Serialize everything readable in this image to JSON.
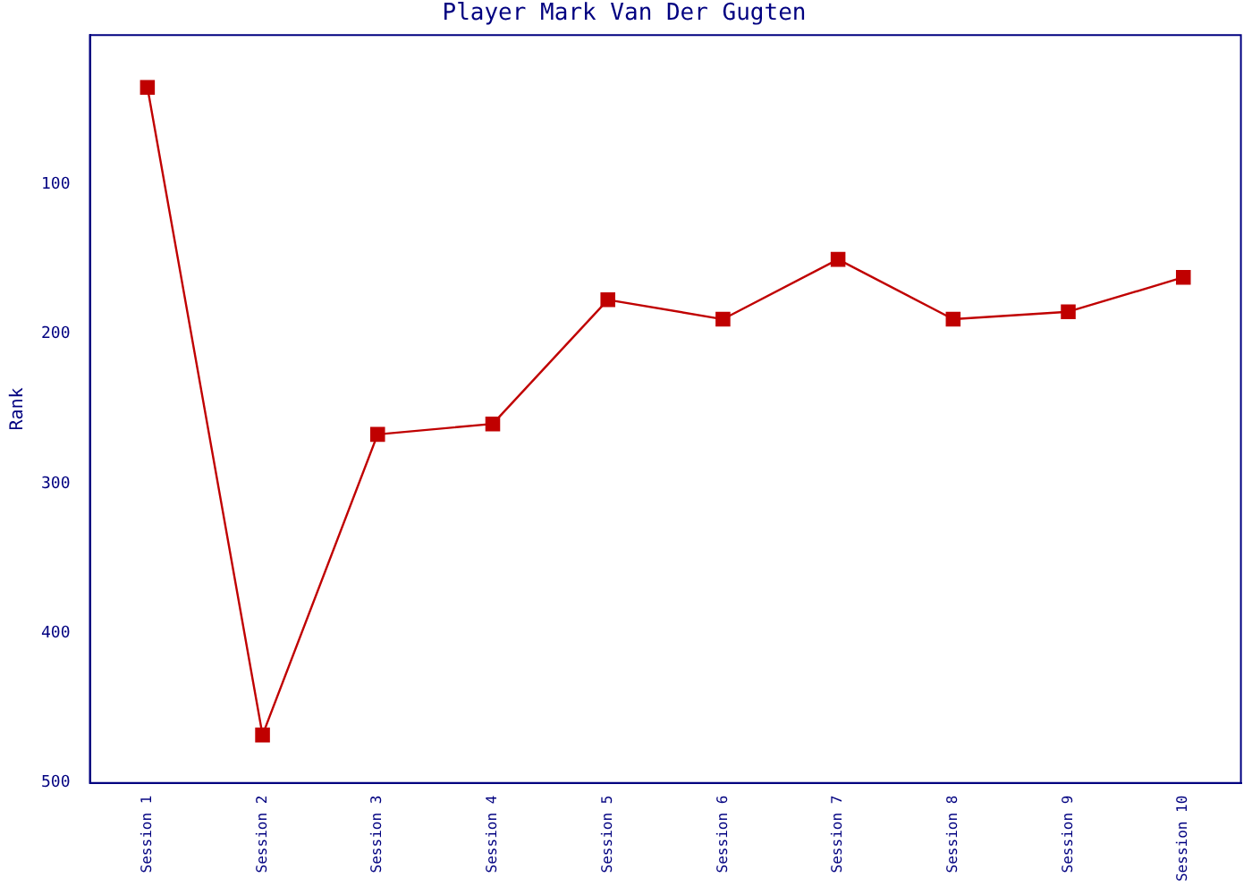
{
  "chart_data": {
    "type": "line",
    "title": "Player Mark Van Der Gugten",
    "ylabel": "Rank",
    "categories": [
      "Session 1",
      "Session 2",
      "Session 3",
      "Session 4",
      "Session 5",
      "Session 6",
      "Session 7",
      "Session 8",
      "Session 9",
      "Session 10"
    ],
    "series": [
      {
        "color": "#c00000",
        "values": [
          35,
          468,
          267,
          260,
          177,
          190,
          150,
          190,
          185,
          162
        ]
      }
    ],
    "ylim": [
      500,
      0
    ],
    "yticks": [
      100,
      200,
      300,
      400,
      500
    ],
    "grid": false,
    "legend": false,
    "marker": "square",
    "line_style": "solid"
  }
}
